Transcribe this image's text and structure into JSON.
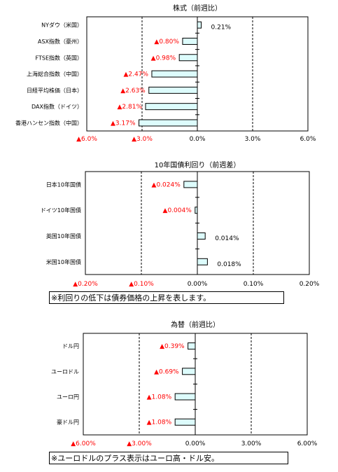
{
  "colors": {
    "bar_fill": "#ddfcfc",
    "bar_stroke": "#000000",
    "negative_label": "#ff0000",
    "positive_label": "#000000"
  },
  "chart_data": [
    {
      "type": "bar",
      "orientation": "horizontal",
      "title": "株式（前週比）",
      "categories": [
        "NYダウ（米国）",
        "ASX指数（豪州）",
        "FTSE指数（英国）",
        "上海総合指数（中国）",
        "日経平均株価（日本）",
        "DAX指数（ドイツ）",
        "香港ハンセン指数（中国）"
      ],
      "values": [
        0.21,
        -0.8,
        -0.98,
        -2.47,
        -2.63,
        -2.81,
        -3.17
      ],
      "value_labels": [
        "0.21%",
        "▲0.80%",
        "▲0.98%",
        "▲2.47%",
        "▲2.63%",
        "▲2.81%",
        "▲3.17%"
      ],
      "xlim": [
        -6,
        6
      ],
      "ticks": [
        -6,
        -3,
        0,
        3,
        6
      ],
      "tick_labels": [
        "▲6.0%",
        "▲3.0%",
        "0.0%",
        "3.0%",
        "6.0%"
      ],
      "grid": "dashed verticals at ±3"
    },
    {
      "type": "bar",
      "orientation": "horizontal",
      "title": "10年国債利回り（前週差）",
      "categories": [
        "日本10年国債",
        "ドイツ10年国債",
        "英国10年国債",
        "米国10年国債"
      ],
      "values": [
        -0.024,
        -0.004,
        0.014,
        0.018
      ],
      "value_labels": [
        "▲0.024%",
        "▲0.004%",
        "0.014%",
        "0.018%"
      ],
      "xlim": [
        -0.2,
        0.2
      ],
      "ticks": [
        -0.2,
        -0.1,
        0,
        0.1,
        0.2
      ],
      "tick_labels": [
        "▲0.20%",
        "▲0.10%",
        "0.00%",
        "0.10%",
        "0.20%"
      ],
      "grid": "dashed verticals at ±0.1"
    },
    {
      "type": "bar",
      "orientation": "horizontal",
      "title": "為替（前週比）",
      "categories": [
        "ドル円",
        "ユーロドル",
        "ユーロ円",
        "豪ドル円"
      ],
      "values": [
        -0.39,
        -0.69,
        -1.08,
        -1.08
      ],
      "value_labels": [
        "▲0.39%",
        "▲0.69%",
        "▲1.08%",
        "▲1.08%"
      ],
      "xlim": [
        -6,
        6
      ],
      "ticks": [
        -6,
        -3,
        0,
        3,
        6
      ],
      "tick_labels": [
        "▲6.00%",
        "▲3.00%",
        "0.00%",
        "3.00%",
        "6.00%"
      ],
      "grid": "dashed verticals at ±3"
    }
  ],
  "notes": {
    "bond_note": "※利回りの低下は債券価格の上昇を表します。",
    "fx_note": "※ユーロドルのプラス表示はユーロ高・ドル安。"
  }
}
